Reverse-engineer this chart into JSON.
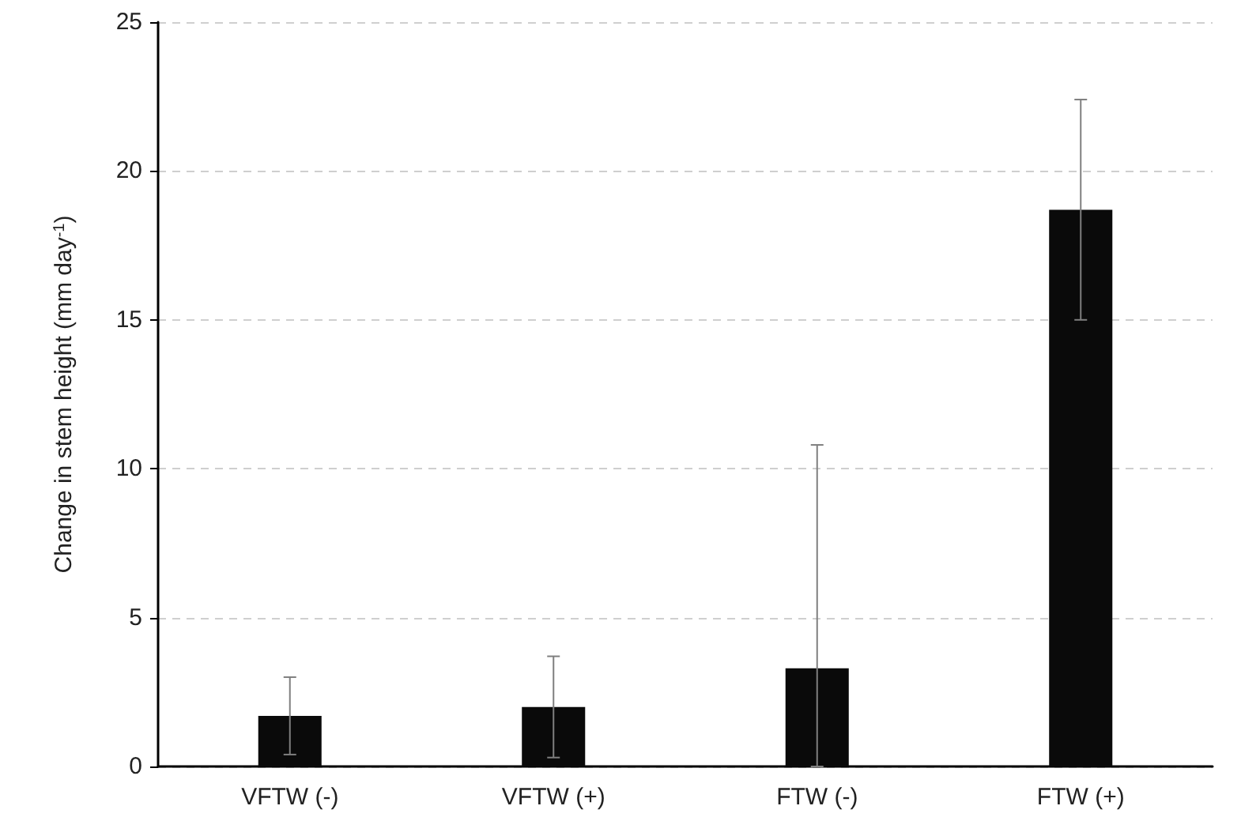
{
  "chart_data": {
    "type": "bar",
    "ylabel": "Change in stem height (mm day$^{-1}$)",
    "categories": [
      "VFTW (-)",
      "VFTW (+)",
      "FTW (-)",
      "FTW (+)"
    ],
    "values": [
      1.7,
      2.0,
      3.3,
      18.7
    ],
    "color": "#0a0a0a",
    "errors": [
      1.3,
      1.7,
      [
        0,
        10.8
      ],
      3.7
    ],
    "ylim": [
      0,
      25
    ],
    "yticks": [
      0,
      5,
      10,
      15,
      20,
      25
    ],
    "grid": "y"
  }
}
